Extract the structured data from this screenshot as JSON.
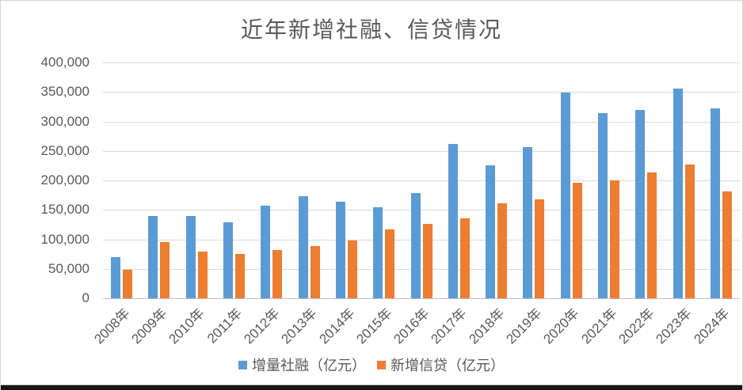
{
  "window": {
    "background": "#ffffff",
    "border_color": "#d6d6d6",
    "bottom_bar_color": "#161616"
  },
  "chart_data": {
    "type": "bar",
    "title": "近年新增社融、信贷情况",
    "categories": [
      "2008年",
      "2009年",
      "2010年",
      "2011年",
      "2012年",
      "2013年",
      "2014年",
      "2015年",
      "2016年",
      "2017年",
      "2018年",
      "2019年",
      "2020年",
      "2021年",
      "2022年",
      "2023年",
      "2024年"
    ],
    "series": [
      {
        "name": "增量社融（亿元）",
        "color": "#5B9BD5",
        "values": [
          69800,
          139100,
          140200,
          128300,
          157600,
          172900,
          164100,
          154100,
          178000,
          261200,
          225200,
          255800,
          348600,
          313500,
          320100,
          355900,
          322600
        ]
      },
      {
        "name": "新增信贷（亿元）",
        "color": "#ED7D31",
        "values": [
          49000,
          95900,
          79500,
          74700,
          82000,
          88900,
          97800,
          117200,
          126500,
          135300,
          161700,
          168100,
          196300,
          199500,
          213100,
          227500,
          180900
        ]
      }
    ],
    "xlabel": "",
    "ylabel": "",
    "ylim": [
      0,
      400000
    ],
    "ytick_step": 50000,
    "ytick_labels": [
      "0",
      "50,000",
      "100,000",
      "150,000",
      "200,000",
      "250,000",
      "300,000",
      "350,000",
      "400,000"
    ],
    "grid": true,
    "gridline_color": "#d9d9d9",
    "axis_line_color": "#bfbfbf",
    "text_color": "#595959",
    "x_label_rotation": -45,
    "legend_position": "bottom"
  }
}
